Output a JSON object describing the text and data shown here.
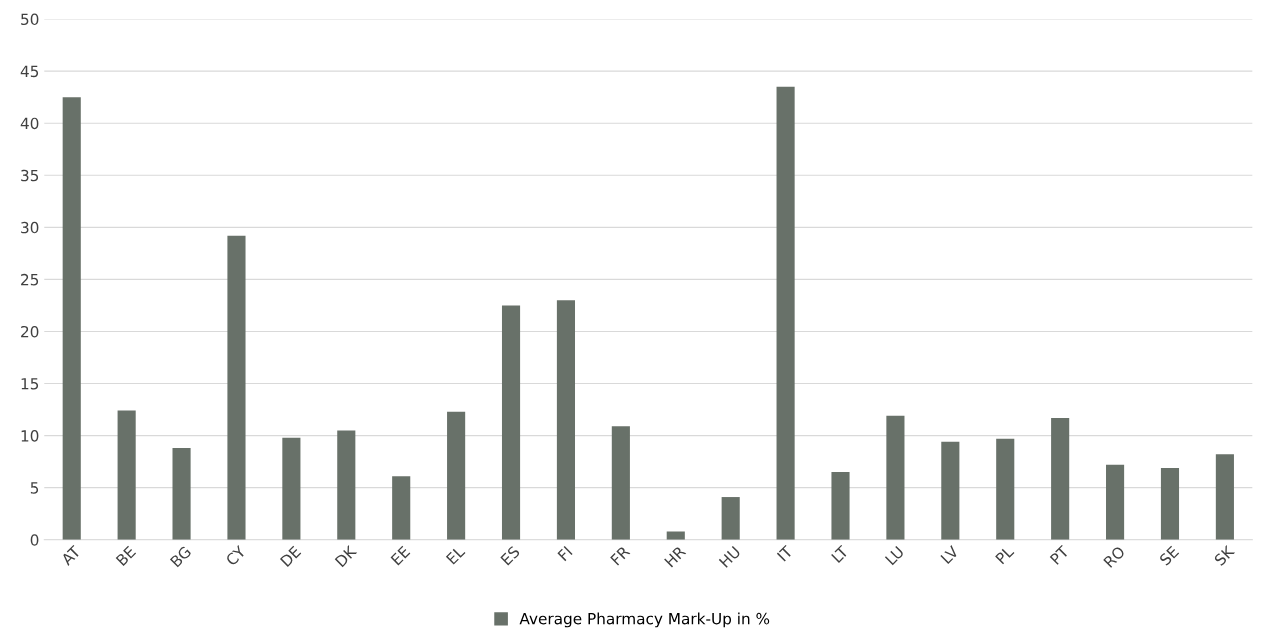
{
  "chart_data": {
    "type": "bar",
    "categories": [
      "AT",
      "BE",
      "BG",
      "CY",
      "DE",
      "DK",
      "EE",
      "EL",
      "ES",
      "FI",
      "FR",
      "HR",
      "HU",
      "IT",
      "LT",
      "LU",
      "LV",
      "PL",
      "PT",
      "RO",
      "SE",
      "SK"
    ],
    "series": [
      {
        "name": "Average Pharmacy Mark-Up in %",
        "color": "#687169",
        "values": [
          42.5,
          12.4,
          8.8,
          29.2,
          9.8,
          10.5,
          6.1,
          12.3,
          22.5,
          23.0,
          10.9,
          0.8,
          4.1,
          43.5,
          6.5,
          11.9,
          9.4,
          9.7,
          11.7,
          7.2,
          6.9,
          8.2
        ]
      }
    ],
    "ylim": [
      0,
      50
    ],
    "yticks": [
      0,
      5,
      10,
      15,
      20,
      25,
      30,
      35,
      40,
      45,
      50
    ],
    "grid": "y",
    "legend": "bottom"
  }
}
